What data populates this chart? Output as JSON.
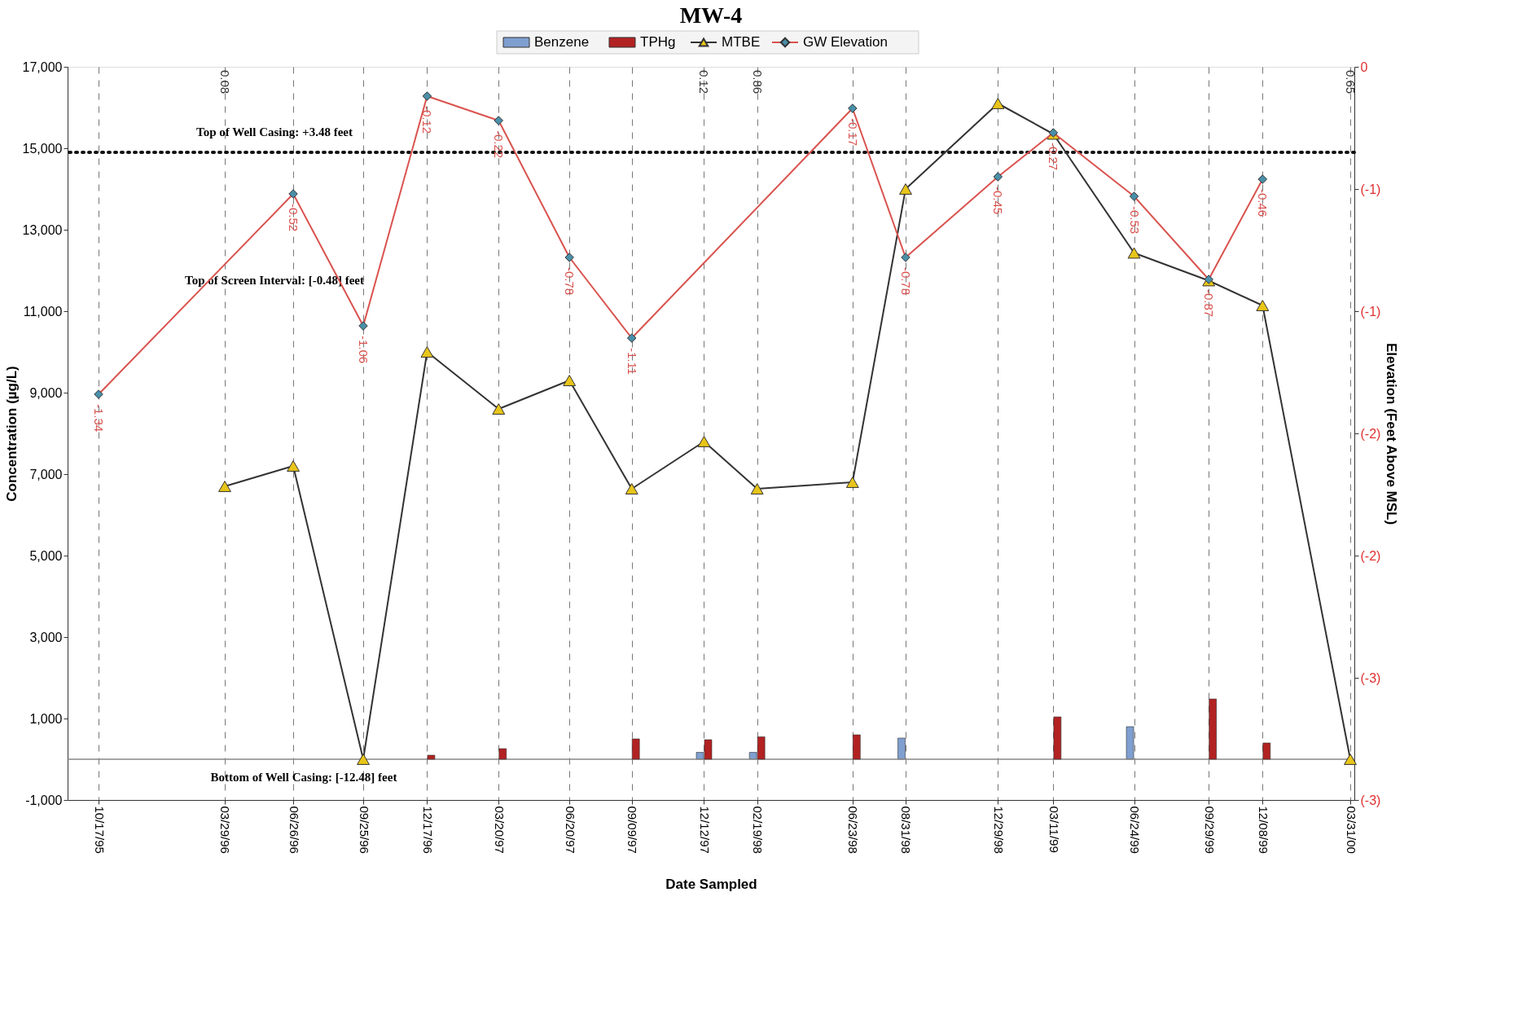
{
  "chart_data": {
    "type": "bar",
    "title": "MW-4",
    "xlabel": "Date Sampled",
    "ylabel": "Concentration (µg/L)",
    "y2label": "Elevation (Feet Above MSL)",
    "x": [
      "1995-10-17",
      "1996-03-29",
      "1996-06-26",
      "1996-09-25",
      "1996-12-17",
      "1997-03-20",
      "1997-06-20",
      "1997-09-09",
      "1997-12-12",
      "1998-02-19",
      "1998-06-23",
      "1998-08-31",
      "1998-12-29",
      "1999-03-11",
      "1999-06-24",
      "1999-09-29",
      "1999-12-08",
      "2000-03-31"
    ],
    "xlim": [
      "1995-09-12",
      "2000-03-31"
    ],
    "xticks": [
      {
        "value": "1995-10-17",
        "label": "10/17/95"
      },
      {
        "value": "1996-03-29",
        "label": "03/29/96"
      },
      {
        "value": "1996-06-26",
        "label": "06/26/96"
      },
      {
        "value": "1996-09-25",
        "label": "09/25/96"
      },
      {
        "value": "1996-12-17",
        "label": "12/17/96"
      },
      {
        "value": "1997-03-20",
        "label": "03/20/97"
      },
      {
        "value": "1997-06-20",
        "label": "06/20/97"
      },
      {
        "value": "1997-09-09",
        "label": "09/09/97"
      },
      {
        "value": "1997-12-12",
        "label": "12/12/97"
      },
      {
        "value": "1998-02-19",
        "label": "02/19/98"
      },
      {
        "value": "1998-06-23",
        "label": "06/23/98"
      },
      {
        "value": "1998-08-31",
        "label": "08/31/98"
      },
      {
        "value": "1998-12-29",
        "label": "12/29/98"
      },
      {
        "value": "1999-03-11",
        "label": "03/11/99"
      },
      {
        "value": "1999-06-24",
        "label": "06/24/99"
      },
      {
        "value": "1999-09-29",
        "label": "09/29/99"
      },
      {
        "value": "1999-12-08",
        "label": "12/08/99"
      },
      {
        "value": "2000-03-31",
        "label": "03/31/00"
      }
    ],
    "ylim": [
      -1000,
      17000
    ],
    "yticks": [
      {
        "value": -1000,
        "label": "-1,000"
      },
      {
        "value": 1000,
        "label": "1,000"
      },
      {
        "value": 3000,
        "label": "3,000"
      },
      {
        "value": 5000,
        "label": "5,000"
      },
      {
        "value": 7000,
        "label": "7,000"
      },
      {
        "value": 9000,
        "label": "9,000"
      },
      {
        "value": 11000,
        "label": "11,000"
      },
      {
        "value": 13000,
        "label": "13,000"
      },
      {
        "value": 15000,
        "label": "15,000"
      },
      {
        "value": 17000,
        "label": "17,000"
      }
    ],
    "y2lim": [
      -3,
      0
    ],
    "y2ticks": [
      {
        "value": -3,
        "label": "(-3)"
      },
      {
        "value": -2.5,
        "label": "(-3)"
      },
      {
        "value": -2,
        "label": "(-2)"
      },
      {
        "value": -1.5,
        "label": "(-2)"
      },
      {
        "value": -1,
        "label": "(-1)"
      },
      {
        "value": -0.5,
        "label": "(-1)"
      },
      0
    ],
    "grid": "x",
    "legend": "top",
    "series": [
      {
        "name": "Benzene",
        "color": "#7f9fd0",
        "values": [
          null,
          null,
          null,
          null,
          null,
          null,
          null,
          null,
          170,
          170,
          null,
          520,
          null,
          null,
          800,
          null,
          null,
          null
        ]
      },
      {
        "name": "TPHg",
        "color": "#b22222",
        "values": [
          null,
          null,
          null,
          null,
          100,
          260,
          null,
          500,
          480,
          550,
          600,
          null,
          null,
          1040,
          null,
          1480,
          400,
          null
        ]
      },
      {
        "name": "MTBE",
        "type": "line",
        "marker": "triangle",
        "color": "#333333",
        "values": [
          null,
          6700,
          7200,
          0,
          10000,
          8600,
          9300,
          6640,
          7800,
          6640,
          6800,
          14000,
          16100,
          15350,
          12430,
          11750,
          11140,
          0
        ]
      },
      {
        "name": "GW Elevation",
        "type": "line",
        "marker": "diamond",
        "axis": "y2",
        "color": "#d9534f",
        "values": [
          -1.34,
          null,
          -0.52,
          -1.06,
          -0.12,
          -0.22,
          -0.78,
          -1.11,
          null,
          null,
          -0.17,
          -0.78,
          -0.45,
          -0.27,
          -0.53,
          -0.87,
          -0.46,
          null
        ],
        "value_labels": [
          "-1.34",
          null,
          "-0.52",
          "-1.06",
          "-0.12",
          "-0.22",
          "-0.78",
          "-1.11",
          null,
          null,
          "-0.17",
          "-0.78",
          "-0.45",
          "-0.27",
          "-0.53",
          "-0.87",
          "-0.46",
          null
        ]
      }
    ],
    "ref_lines": [
      {
        "axis": "y",
        "value": 14900,
        "color": "#111111",
        "line_style": "dotted"
      },
      {
        "axis": "y",
        "value": 0,
        "color": "#888888",
        "line_style": "solid"
      }
    ],
    "annotations": [
      "Top of Well Casing:  +3.48 feet",
      "Top of Screen Interval:  [-0.48] feet",
      "Bottom of Well Casing: [-12.48]  feet",
      "0.08",
      "0.12",
      "0.86",
      "0.65"
    ]
  }
}
